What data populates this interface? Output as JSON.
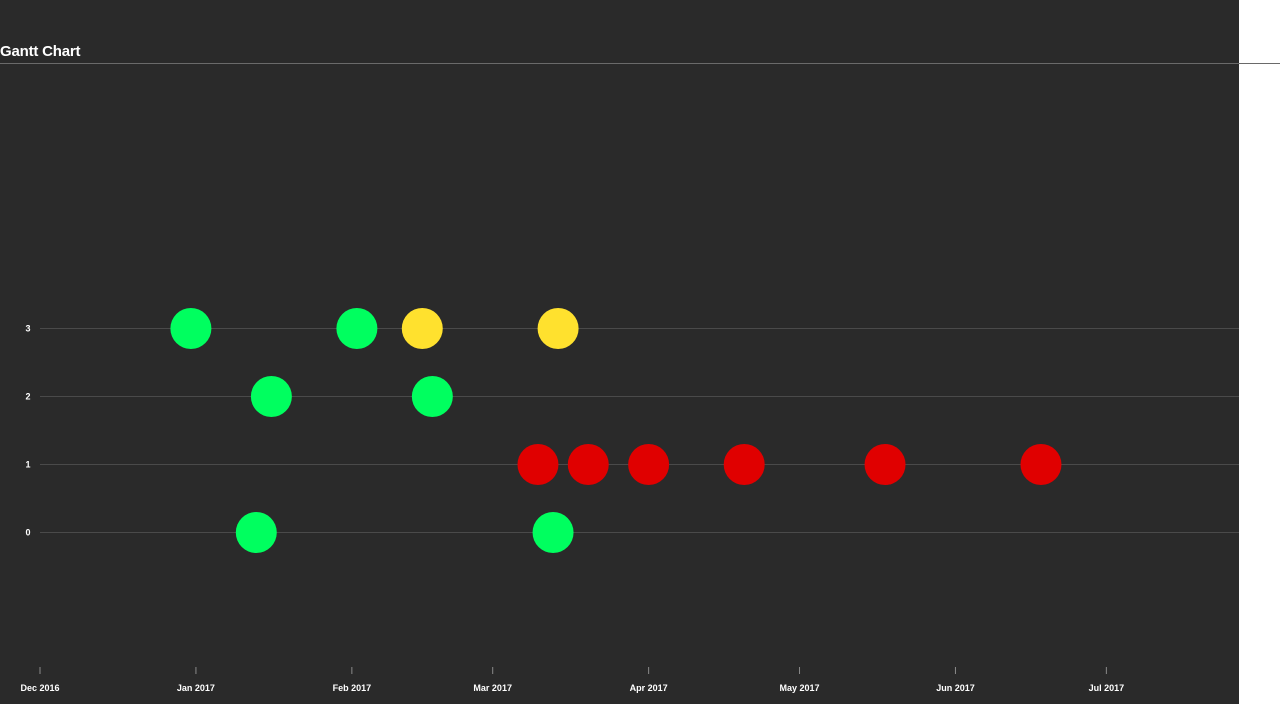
{
  "title": "Gantt Chart",
  "chart_data": {
    "type": "scatter",
    "title": "Gantt Chart",
    "xlabel": "",
    "ylabel": "",
    "x_axis_type": "date",
    "xlim": [
      "2016-12-01",
      "2017-07-31"
    ],
    "x_ticks": [
      {
        "label": "Dec 2016",
        "date": "2016-12-01"
      },
      {
        "label": "Jan 2017",
        "date": "2017-01-01"
      },
      {
        "label": "Feb 2017",
        "date": "2017-02-01"
      },
      {
        "label": "Mar 2017",
        "date": "2017-03-01"
      },
      {
        "label": "Apr 2017",
        "date": "2017-04-01"
      },
      {
        "label": "May 2017",
        "date": "2017-05-01"
      },
      {
        "label": "Jun 2017",
        "date": "2017-06-01"
      },
      {
        "label": "Jul 2017",
        "date": "2017-07-01"
      }
    ],
    "y_ticks": [
      0,
      1,
      2,
      3
    ],
    "ylim": [
      -2,
      5
    ],
    "grid": true,
    "legend": "none",
    "colors": {
      "green": "#00ff5f",
      "yellow": "#ffe12e",
      "red": "#e00000",
      "background": "#2a2a2a",
      "grid": "#4a4a4a"
    },
    "points": [
      {
        "x": "2016-12-31",
        "y": 3,
        "color": "green"
      },
      {
        "x": "2017-01-16",
        "y": 2,
        "color": "green"
      },
      {
        "x": "2017-01-13",
        "y": 0,
        "color": "green"
      },
      {
        "x": "2017-02-02",
        "y": 3,
        "color": "green"
      },
      {
        "x": "2017-02-15",
        "y": 3,
        "color": "yellow"
      },
      {
        "x": "2017-02-17",
        "y": 2,
        "color": "green"
      },
      {
        "x": "2017-03-10",
        "y": 1,
        "color": "red"
      },
      {
        "x": "2017-03-14",
        "y": 3,
        "color": "yellow"
      },
      {
        "x": "2017-03-13",
        "y": 0,
        "color": "green"
      },
      {
        "x": "2017-03-20",
        "y": 1,
        "color": "red"
      },
      {
        "x": "2017-04-01",
        "y": 1,
        "color": "red"
      },
      {
        "x": "2017-04-20",
        "y": 1,
        "color": "red"
      },
      {
        "x": "2017-05-18",
        "y": 1,
        "color": "red"
      },
      {
        "x": "2017-06-18",
        "y": 1,
        "color": "red"
      }
    ]
  }
}
